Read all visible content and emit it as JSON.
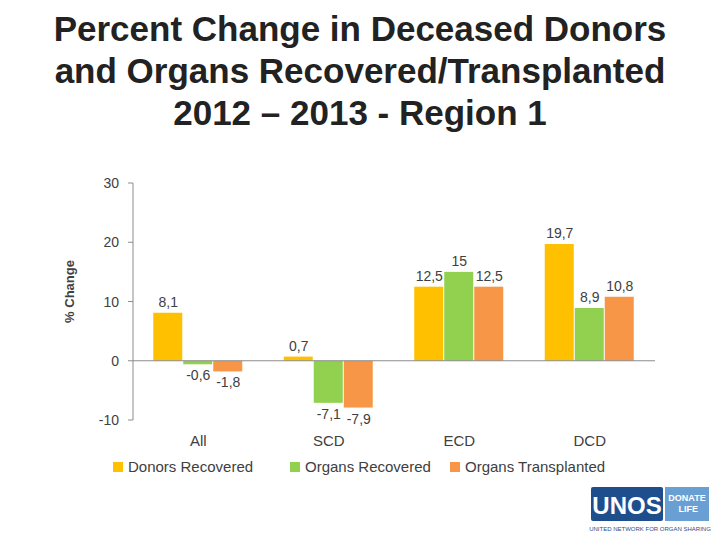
{
  "chart_data": {
    "type": "bar",
    "title": "Percent Change in Deceased Donors and Organs Recovered/Transplanted 2012 – 2013 - Region 1",
    "y_label": "% Change",
    "categories": [
      "All",
      "SCD",
      "ECD",
      "DCD"
    ],
    "series": [
      {
        "name": "Donors Recovered",
        "color": "#FFC000",
        "values": [
          8.1,
          0.7,
          12.5,
          19.7
        ],
        "value_labels": [
          "8,1",
          "0,7",
          "12,5",
          "19,7"
        ]
      },
      {
        "name": "Organs Recovered",
        "color": "#92D050",
        "values": [
          -0.6,
          -7.1,
          15,
          8.9
        ],
        "value_labels": [
          "-0,6",
          "-7,1",
          "15",
          "8,9"
        ]
      },
      {
        "name": "Organs Transplanted",
        "color": "#F79646",
        "values": [
          -1.8,
          -7.9,
          12.5,
          10.8
        ],
        "value_labels": [
          "-1,8",
          "-7,9",
          "12,5",
          "10,8"
        ]
      }
    ],
    "ylim": [
      -10,
      30
    ],
    "yticks": [
      -10,
      0,
      10,
      20,
      30
    ],
    "grid": false,
    "data_labels": true,
    "legend": "bottom"
  },
  "logo": {
    "name": "UNOS",
    "tag": "DONATE LIFE",
    "subtitle": "UNITED NETWORK FOR ORGAN SHARING"
  }
}
